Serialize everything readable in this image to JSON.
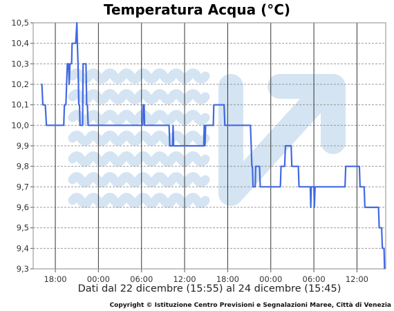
{
  "chart_data": {
    "type": "line",
    "title": "Temperatura Acqua (°C)",
    "xlabel": "Dati dal 22 dicembre (15:55) al 24 dicembre (15:45)",
    "ylabel": "",
    "x_unit": "hours",
    "xlim": [
      "22 dic 14:55",
      "24 dic 16:00"
    ],
    "ylim": [
      9.3,
      10.5
    ],
    "y_ticks": [
      "10,5",
      "10,4",
      "10,3",
      "10,2",
      "10,1",
      "10,0",
      "9,9",
      "9,8",
      "9,7",
      "9,6",
      "9,5",
      "9,4",
      "9,3"
    ],
    "x_ticks": [
      {
        "label": "18:00",
        "at": "22 dic 18:00"
      },
      {
        "label": "00:00",
        "at": "23 dic 00:00"
      },
      {
        "label": "06:00",
        "at": "23 dic 06:00"
      },
      {
        "label": "12:00",
        "at": "23 dic 12:00"
      },
      {
        "label": "18:00",
        "at": "23 dic 18:00"
      },
      {
        "label": "00:00",
        "at": "24 dic 00:00"
      },
      {
        "label": "06:00",
        "at": "24 dic 06:00"
      },
      {
        "label": "12:00",
        "at": "24 dic 12:00"
      }
    ],
    "grid": {
      "x": "solid",
      "y": "dashed"
    },
    "series": [
      {
        "color": "#4169e1",
        "points": [
          [
            "22 dic 16:00",
            10.2
          ],
          [
            "22 dic 16:08",
            10.2
          ],
          [
            "22 dic 16:16",
            10.1
          ],
          [
            "22 dic 16:36",
            10.1
          ],
          [
            "22 dic 16:46",
            10.0
          ],
          [
            "22 dic 17:50",
            10.0
          ],
          [
            "22 dic 18:10",
            10.0
          ],
          [
            "22 dic 19:10",
            10.0
          ],
          [
            "22 dic 19:16",
            10.1
          ],
          [
            "22 dic 19:28",
            10.1
          ],
          [
            "22 dic 19:40",
            10.3
          ],
          [
            "22 dic 19:50",
            10.3
          ],
          [
            "22 dic 19:56",
            10.2
          ],
          [
            "22 dic 20:02",
            10.3
          ],
          [
            "22 dic 20:16",
            10.3
          ],
          [
            "22 dic 20:20",
            10.4
          ],
          [
            "22 dic 20:50",
            10.4
          ],
          [
            "22 dic 21:00",
            10.5
          ],
          [
            "22 dic 21:04",
            10.4
          ],
          [
            "22 dic 21:10",
            10.3
          ],
          [
            "22 dic 21:16",
            10.1
          ],
          [
            "22 dic 21:22",
            10.1
          ],
          [
            "22 dic 21:26",
            10.0
          ],
          [
            "22 dic 21:48",
            10.0
          ],
          [
            "22 dic 21:52",
            10.3
          ],
          [
            "22 dic 22:16",
            10.3
          ],
          [
            "22 dic 22:22",
            10.1
          ],
          [
            "22 dic 22:28",
            10.1
          ],
          [
            "22 dic 22:34",
            10.0
          ],
          [
            "23 dic 06:10",
            10.0
          ],
          [
            "23 dic 06:14",
            10.1
          ],
          [
            "23 dic 06:22",
            10.1
          ],
          [
            "23 dic 06:26",
            10.0
          ],
          [
            "23 dic 09:50",
            10.0
          ],
          [
            "23 dic 09:56",
            9.9
          ],
          [
            "23 dic 10:20",
            9.9
          ],
          [
            "23 dic 10:24",
            10.0
          ],
          [
            "23 dic 10:28",
            9.9
          ],
          [
            "23 dic 14:40",
            9.9
          ],
          [
            "23 dic 14:44",
            10.0
          ],
          [
            "23 dic 14:50",
            9.9
          ],
          [
            "23 dic 14:56",
            10.0
          ],
          [
            "23 dic 16:00",
            10.0
          ],
          [
            "23 dic 16:04",
            10.1
          ],
          [
            "23 dic 17:30",
            10.1
          ],
          [
            "23 dic 17:36",
            10.0
          ],
          [
            "23 dic 21:10",
            10.0
          ],
          [
            "23 dic 21:16",
            9.9
          ],
          [
            "23 dic 21:22",
            9.8
          ],
          [
            "23 dic 21:26",
            9.8
          ],
          [
            "23 dic 21:32",
            9.7
          ],
          [
            "23 dic 21:50",
            9.7
          ],
          [
            "23 dic 21:54",
            9.8
          ],
          [
            "23 dic 22:26",
            9.8
          ],
          [
            "23 dic 22:32",
            9.7
          ],
          [
            "24 dic 01:20",
            9.7
          ],
          [
            "24 dic 01:26",
            9.8
          ],
          [
            "24 dic 01:56",
            9.8
          ],
          [
            "24 dic 02:02",
            9.9
          ],
          [
            "24 dic 02:50",
            9.9
          ],
          [
            "24 dic 02:56",
            9.8
          ],
          [
            "24 dic 03:50",
            9.8
          ],
          [
            "24 dic 03:56",
            9.7
          ],
          [
            "24 dic 05:30",
            9.7
          ],
          [
            "24 dic 05:34",
            9.6
          ],
          [
            "24 dic 05:38",
            9.7
          ],
          [
            "24 dic 06:00",
            9.7
          ],
          [
            "24 dic 06:04",
            9.6
          ],
          [
            "24 dic 06:10",
            9.7
          ],
          [
            "24 dic 10:20",
            9.7
          ],
          [
            "24 dic 10:26",
            9.8
          ],
          [
            "24 dic 12:20",
            9.8
          ],
          [
            "24 dic 12:26",
            9.7
          ],
          [
            "24 dic 13:00",
            9.7
          ],
          [
            "24 dic 13:06",
            9.6
          ],
          [
            "24 dic 15:00",
            9.6
          ],
          [
            "24 dic 15:06",
            9.5
          ],
          [
            "24 dic 15:26",
            9.5
          ],
          [
            "24 dic 15:32",
            9.4
          ],
          [
            "24 dic 15:46",
            9.4
          ],
          [
            "24 dic 15:50",
            9.3
          ]
        ]
      }
    ],
    "watermark": {
      "description": "waves-and-arrow logo",
      "color": "#d4e4f2"
    }
  },
  "copyright": "Copyright © Istituzione Centro Previsioni e Segnalazioni Maree, Città di Venezia"
}
